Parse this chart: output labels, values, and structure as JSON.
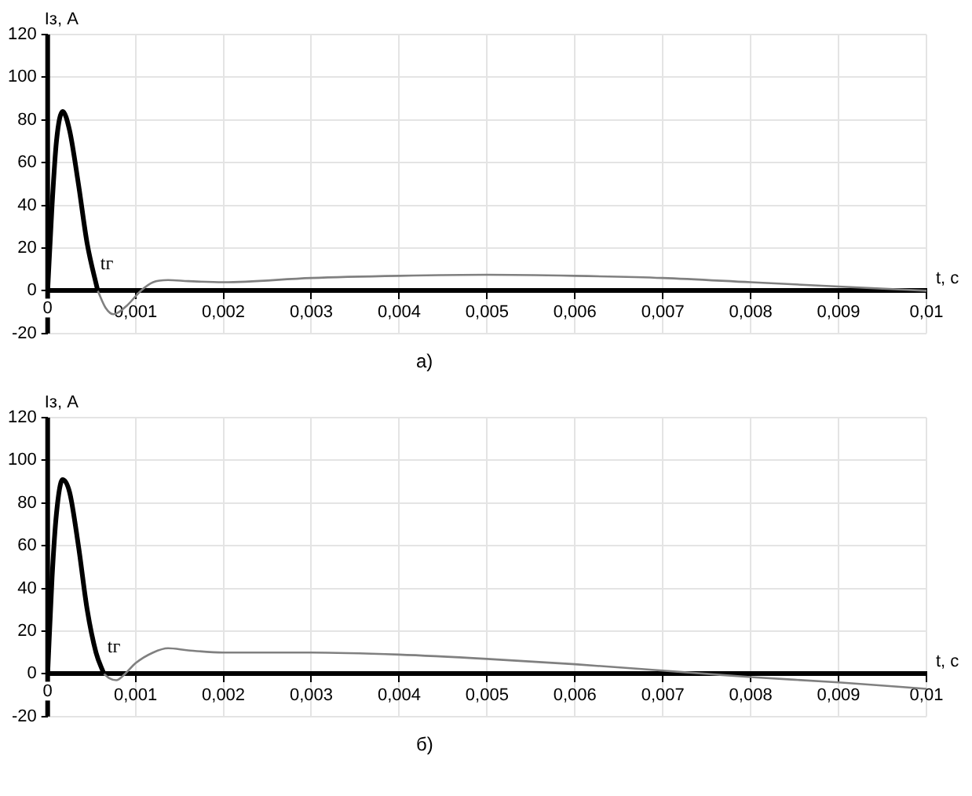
{
  "chart_data": [
    {
      "type": "line",
      "xlabel": "t, с",
      "ylabel": "Iз, А",
      "xlim": [
        0,
        0.01
      ],
      "ylim": [
        -20,
        120
      ],
      "xticks": [
        0,
        {
          "value": 0.001,
          "label": "0,001"
        },
        {
          "value": 0.002,
          "label": "0,002"
        },
        {
          "value": 0.003,
          "label": "0,003"
        },
        {
          "value": 0.004,
          "label": "0,004"
        },
        {
          "value": 0.005,
          "label": "0,005"
        },
        {
          "value": 0.006,
          "label": "0,006"
        },
        {
          "value": 0.007,
          "label": "0,007"
        },
        {
          "value": 0.008,
          "label": "0,008"
        },
        {
          "value": 0.009,
          "label": "0,009"
        },
        {
          "value": 0.01,
          "label": "0,01"
        }
      ],
      "yticks": [
        -20,
        0,
        20,
        40,
        60,
        80,
        100,
        120
      ],
      "grid": true,
      "legend": false,
      "marker": "none",
      "line_style": "solid",
      "series": [
        {
          "color": "#000000",
          "x": [
            0,
            5e-05,
            0.0001,
            0.00017,
            0.00025,
            0.00035,
            0.00045,
            0.00057
          ],
          "values": [
            0,
            40,
            70,
            84,
            75,
            50,
            22,
            0
          ]
        },
        {
          "color": "#808080",
          "x": [
            0.00057,
            0.00066,
            0.00075,
            0.0009,
            0.00106,
            0.0012,
            0.00137,
            0.0016,
            0.002,
            0.003,
            0.004,
            0.005,
            0.006,
            0.007,
            0.008,
            0.009,
            0.01
          ],
          "values": [
            0,
            -8,
            -11,
            -7,
            0,
            4,
            5,
            4.5,
            4,
            6,
            7,
            7.5,
            7,
            6,
            4,
            2,
            0
          ]
        }
      ],
      "annotations": [
        {
          "text": "tг",
          "x": 0.0006,
          "y": 8
        },
        "а)"
      ]
    },
    {
      "type": "line",
      "xlabel": "t, с",
      "ylabel": "Iз, А",
      "xlim": [
        0,
        0.01
      ],
      "ylim": [
        -20,
        120
      ],
      "xticks": [
        0,
        {
          "value": 0.001,
          "label": "0,001"
        },
        {
          "value": 0.002,
          "label": "0,002"
        },
        {
          "value": 0.003,
          "label": "0,003"
        },
        {
          "value": 0.004,
          "label": "0,004"
        },
        {
          "value": 0.005,
          "label": "0,005"
        },
        {
          "value": 0.006,
          "label": "0,006"
        },
        {
          "value": 0.007,
          "label": "0,007"
        },
        {
          "value": 0.008,
          "label": "0,008"
        },
        {
          "value": 0.009,
          "label": "0,009"
        },
        {
          "value": 0.01,
          "label": "0,01"
        }
      ],
      "yticks": [
        -20,
        0,
        20,
        40,
        60,
        80,
        100,
        120
      ],
      "grid": true,
      "legend": false,
      "marker": "none",
      "line_style": "solid",
      "series": [
        {
          "color": "#000000",
          "x": [
            0,
            5e-05,
            0.0001,
            0.00017,
            0.00025,
            0.00035,
            0.00045,
            0.00055,
            0.00064
          ],
          "values": [
            0,
            45,
            75,
            91,
            85,
            60,
            30,
            10,
            0
          ]
        },
        {
          "color": "#808080",
          "x": [
            0.00064,
            0.0007,
            0.00078,
            0.00088,
            0.001,
            0.0012,
            0.00137,
            0.0016,
            0.002,
            0.003,
            0.004,
            0.005,
            0.006,
            0.007,
            0.0075,
            0.008,
            0.009,
            0.01
          ],
          "values": [
            0,
            -2,
            -3,
            0,
            5,
            10,
            12,
            11,
            10,
            10,
            9,
            7,
            4.5,
            1.5,
            0,
            -1.5,
            -4,
            -7
          ]
        }
      ],
      "annotations": [
        {
          "text": "tг",
          "x": 0.00068,
          "y": 8
        },
        "б)"
      ]
    }
  ]
}
